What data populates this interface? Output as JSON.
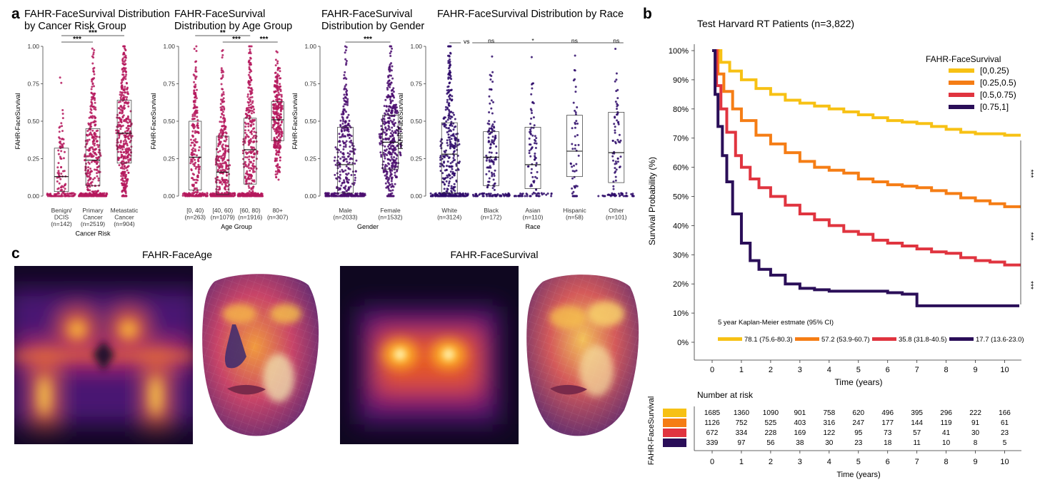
{
  "panel_labels": {
    "a": "a",
    "b": "b",
    "c": "c"
  },
  "colors": {
    "magenta": "#b5195d",
    "purple": "#4a0d6e",
    "km_series": [
      "#f7c114",
      "#f57d15",
      "#e0343f",
      "#2a0e58"
    ]
  },
  "panel_a": [
    {
      "title_lines": [
        "FAHR-FaceSurvival Distribution",
        "by Cancer Risk Group"
      ],
      "ylabel": "FAHR-FaceSurvival",
      "xlabel": "Cancer Risk",
      "yticks": [
        "0.00",
        "0.25",
        "0.50",
        "0.75",
        "1.00"
      ],
      "color": "#b5195d",
      "groups": [
        {
          "label_lines": [
            "Benign/",
            "DCIS",
            "(n=142)"
          ],
          "n": 142,
          "q1": 0.03,
          "median": 0.13,
          "q3": 0.32
        },
        {
          "label_lines": [
            "Primary",
            "Cancer",
            "(n=2519)"
          ],
          "n": 2519,
          "q1": 0.07,
          "median": 0.24,
          "q3": 0.45
        },
        {
          "label_lines": [
            "Metastatic",
            "Cancer",
            "(n=904)"
          ],
          "n": 904,
          "q1": 0.22,
          "median": 0.42,
          "q3": 0.64
        }
      ],
      "brackets": [
        {
          "from": 0,
          "to": 2,
          "label": "***",
          "level": 2
        },
        {
          "from": 0,
          "to": 1,
          "label": "***",
          "level": 1
        }
      ]
    },
    {
      "title_lines": [
        "FAHR-FaceSurvival",
        "Distribution by Age Group"
      ],
      "ylabel": "FAHR-FaceSurvival",
      "xlabel": "Age Group",
      "yticks": [
        "0.00",
        "0.25",
        "0.50",
        "0.75",
        "1.00"
      ],
      "color": "#b5195d",
      "groups": [
        {
          "label_lines": [
            "[0, 40)",
            "(n=263)"
          ],
          "n": 263,
          "q1": 0.04,
          "median": 0.26,
          "q3": 0.5
        },
        {
          "label_lines": [
            "[40, 60)",
            "(n=1079)"
          ],
          "n": 1079,
          "q1": 0.01,
          "median": 0.16,
          "q3": 0.4
        },
        {
          "label_lines": [
            "[60, 80)",
            "(n=1916)"
          ],
          "n": 1916,
          "q1": 0.08,
          "median": 0.31,
          "q3": 0.52
        },
        {
          "label_lines": [
            "80+",
            "(n=307)"
          ],
          "n": 307,
          "q1": 0.37,
          "median": 0.51,
          "q3": 0.63
        }
      ],
      "brackets": [
        {
          "from": 0,
          "to": 2,
          "label": "**",
          "level": 2
        },
        {
          "from": 1,
          "to": 2,
          "label": "***",
          "level": 1
        },
        {
          "from": 2,
          "to": 3,
          "label": "***",
          "level": 1
        }
      ]
    },
    {
      "title_lines": [
        "FAHR-FaceSurvival",
        "Distribution by Gender"
      ],
      "ylabel": "FAHR-FaceSurvival",
      "xlabel": "Gender",
      "yticks": [
        "0.00",
        "0.25",
        "0.50",
        "0.75",
        "1.00"
      ],
      "color": "#4a0d6e",
      "groups": [
        {
          "label_lines": [
            "Male",
            "(n=2033)"
          ],
          "n": 2033,
          "q1": 0.02,
          "median": 0.21,
          "q3": 0.46
        },
        {
          "label_lines": [
            "Female",
            "(n=1532)"
          ],
          "n": 1532,
          "q1": 0.18,
          "median": 0.36,
          "q3": 0.54
        }
      ],
      "brackets": [
        {
          "from": 0,
          "to": 1,
          "label": "***",
          "level": 1
        }
      ]
    },
    {
      "title_lines": [
        "FAHR-FaceSurvival Distribution by Race"
      ],
      "ylabel": "FAHR-FaceSurvival",
      "xlabel": "Race",
      "yticks": [
        "0.00",
        "0.25",
        "0.50",
        "0.75",
        "1.00"
      ],
      "color": "#2e0a6a",
      "vs_label": "vs",
      "groups": [
        {
          "label_lines": [
            "White",
            "(n=3124)"
          ],
          "n": 3124,
          "q1": 0.02,
          "median": 0.28,
          "q3": 0.49,
          "sig": ""
        },
        {
          "label_lines": [
            "Black",
            "(n=172)"
          ],
          "n": 172,
          "q1": 0.07,
          "median": 0.26,
          "q3": 0.43,
          "sig": "ns"
        },
        {
          "label_lines": [
            "Asian",
            "(n=110)"
          ],
          "n": 110,
          "q1": 0.05,
          "median": 0.21,
          "q3": 0.46,
          "sig": "*"
        },
        {
          "label_lines": [
            "Hispanic",
            "(n=58)"
          ],
          "n": 58,
          "q1": 0.13,
          "median": 0.3,
          "q3": 0.54,
          "sig": "ns"
        },
        {
          "label_lines": [
            "Other",
            "(n=101)"
          ],
          "n": 101,
          "q1": 0.09,
          "median": 0.29,
          "q3": 0.56,
          "sig": "ns"
        }
      ],
      "brackets": []
    }
  ],
  "chart_data": {
    "type": "line",
    "title": "Test Harvard RT Patients (n=3,822)",
    "xlabel": "Time (years)",
    "ylabel": "Survival Probability (%)",
    "xlim": [
      0,
      10.5
    ],
    "ylim": [
      0,
      100
    ],
    "xticks": [
      "0",
      "1",
      "2",
      "3",
      "4",
      "5",
      "6",
      "7",
      "8",
      "9",
      "10"
    ],
    "yticks": [
      "0%",
      "10%",
      "20%",
      "30%",
      "40%",
      "50%",
      "60%",
      "70%",
      "80%",
      "90%",
      "100%"
    ],
    "legend_title": "FAHR-FaceSurvival",
    "legend_position": "top-right",
    "series": [
      {
        "name": "[0,0.25)",
        "x": [
          0,
          0.3,
          0.6,
          1,
          1.5,
          2,
          2.5,
          3,
          3.5,
          4,
          4.5,
          5,
          5.5,
          6,
          6.5,
          7,
          7.5,
          8,
          8.5,
          9,
          9.5,
          10,
          10.5
        ],
        "y": [
          100,
          96,
          93,
          90,
          87,
          85,
          83,
          82,
          81,
          80,
          79,
          78,
          77,
          76,
          75.5,
          75,
          74,
          73,
          72,
          71.5,
          71.5,
          71,
          70.5
        ]
      },
      {
        "name": "[0.25,0.5)",
        "x": [
          0,
          0.2,
          0.4,
          0.7,
          1,
          1.5,
          2,
          2.5,
          3,
          3.5,
          4,
          4.5,
          5,
          5.5,
          6,
          6.5,
          7,
          7.5,
          8,
          8.5,
          9,
          9.5,
          10,
          10.5
        ],
        "y": [
          100,
          92,
          86,
          80,
          76,
          71,
          68,
          65,
          62,
          60,
          59,
          58,
          56,
          55,
          54,
          53.5,
          53,
          52,
          51,
          49.5,
          48.5,
          47.5,
          46.5,
          46
        ]
      },
      {
        "name": "[0.5,0.75)",
        "x": [
          0,
          0.15,
          0.3,
          0.5,
          0.8,
          1,
          1.3,
          1.6,
          2,
          2.5,
          3,
          3.5,
          4,
          4.5,
          5,
          5.5,
          6,
          6.5,
          7,
          7.5,
          8,
          8.5,
          9,
          9.5,
          10,
          10.5
        ],
        "y": [
          100,
          88,
          80,
          72,
          64,
          60,
          56,
          53,
          50,
          47,
          44,
          42,
          40,
          38,
          37,
          35,
          34,
          33,
          32,
          31,
          30.5,
          29,
          28,
          27.5,
          26.5,
          26
        ]
      },
      {
        "name": "[0.75,1]",
        "x": [
          0,
          0.1,
          0.2,
          0.35,
          0.5,
          0.7,
          1,
          1.3,
          1.6,
          2,
          2.5,
          3,
          3.5,
          4,
          5,
          6,
          6.5,
          7,
          8,
          9,
          10,
          10.5
        ],
        "y": [
          100,
          85,
          74,
          64,
          55,
          44,
          34,
          28,
          25,
          23,
          20,
          18.5,
          18,
          17.5,
          17.5,
          17,
          16.5,
          12.5,
          12.5,
          12.5,
          12.5,
          12.5
        ]
      }
    ],
    "significance": [
      "***",
      "***",
      "***"
    ],
    "km_estimate_title": "5 year Kaplan-Meier estmate (95% CI)",
    "km_estimates": [
      "78.1 (75.6-80.3)",
      "57.2 (53.9-60.7)",
      "35.8 (31.8-40.5)",
      "17.7 (13.6-23.0)"
    ]
  },
  "risk_table": {
    "title": "Number at risk",
    "ylabel": "FAHR-FaceSurvival",
    "xlabel": "Time (years)",
    "times": [
      "0",
      "1",
      "2",
      "3",
      "4",
      "5",
      "6",
      "7",
      "8",
      "9",
      "10"
    ],
    "rows": [
      [
        "1685",
        "1360",
        "1090",
        "901",
        "758",
        "620",
        "496",
        "395",
        "296",
        "222",
        "166"
      ],
      [
        "1126",
        "752",
        "525",
        "403",
        "316",
        "247",
        "177",
        "144",
        "119",
        "91",
        "61"
      ],
      [
        "672",
        "334",
        "228",
        "169",
        "122",
        "95",
        "73",
        "57",
        "41",
        "30",
        "23"
      ],
      [
        "339",
        "97",
        "56",
        "38",
        "30",
        "23",
        "18",
        "11",
        "10",
        "8",
        "5"
      ]
    ]
  },
  "panel_c": {
    "titles": [
      "FAHR-FaceAge",
      "FAHR-FaceSurvival"
    ]
  }
}
